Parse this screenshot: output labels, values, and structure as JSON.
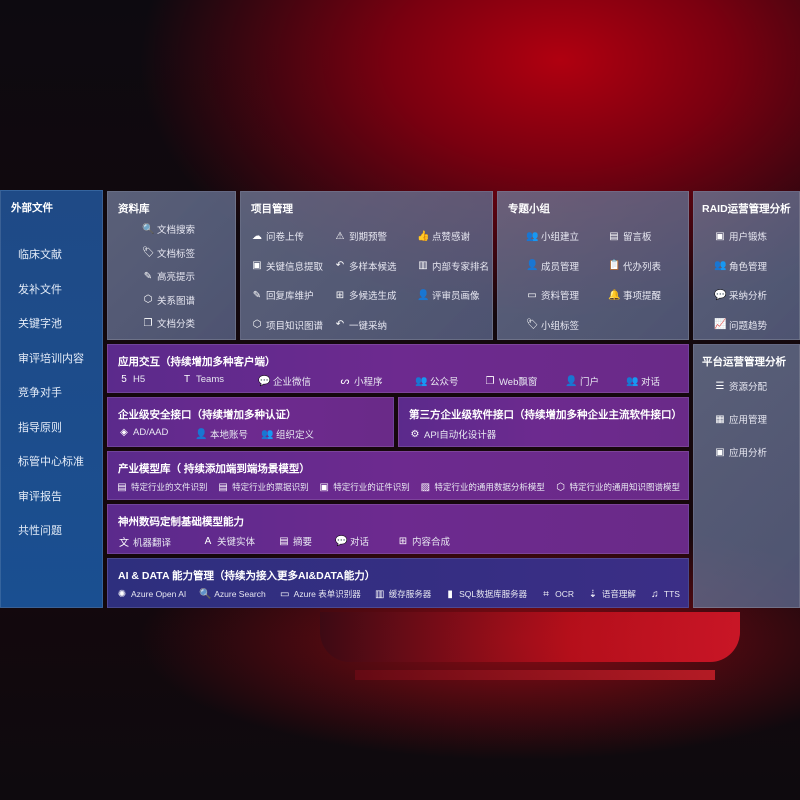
{
  "sidebar": {
    "title": "外部文件",
    "items": [
      "临床文献",
      "发补文件",
      "关键字池",
      "审评培训内容",
      "竞争对手",
      "指导原则",
      "标管中心标准",
      "审评报告",
      "共性问题"
    ]
  },
  "library": {
    "title": "资料库",
    "items": [
      {
        "icon": "doc-search-icon",
        "glyph": "🔍",
        "label": "文档搜索"
      },
      {
        "icon": "tag-icon",
        "glyph": "🏷",
        "label": "文档标签"
      },
      {
        "icon": "pen-icon",
        "glyph": "✎",
        "label": "高亮提示"
      },
      {
        "icon": "graph-icon",
        "glyph": "⬡",
        "label": "关系图谱"
      },
      {
        "icon": "doc-copy-icon",
        "glyph": "❐",
        "label": "文档分类"
      }
    ]
  },
  "project": {
    "title": "项目管理",
    "items": [
      {
        "icon": "cloud-upload-icon",
        "glyph": "☁",
        "label": "问卷上传"
      },
      {
        "icon": "alarm-icon",
        "glyph": "⚠",
        "label": "到期预警"
      },
      {
        "icon": "thumb-up-icon",
        "glyph": "👍",
        "label": "点赞感谢"
      },
      {
        "icon": "window-icon",
        "glyph": "▣",
        "label": "关键信息提取"
      },
      {
        "icon": "reply-icon",
        "glyph": "↶",
        "label": "多样本候选"
      },
      {
        "icon": "rank-icon",
        "glyph": "▥",
        "label": "内部专家排名"
      },
      {
        "icon": "edit-icon",
        "glyph": "✎",
        "label": "回复库维护"
      },
      {
        "icon": "puzzle-icon",
        "glyph": "⊞",
        "label": "多候选生成"
      },
      {
        "icon": "user-icon",
        "glyph": "👤",
        "label": "评审员画像"
      },
      {
        "icon": "graph-icon",
        "glyph": "⬡",
        "label": "项目知识图谱"
      },
      {
        "icon": "reply-icon",
        "glyph": "↶",
        "label": "一键采纳"
      }
    ]
  },
  "group": {
    "title": "专题小组",
    "items": [
      {
        "icon": "users-icon",
        "glyph": "👥",
        "label": "小组建立"
      },
      {
        "icon": "bbs-icon",
        "glyph": "▤",
        "label": "留言板"
      },
      {
        "icon": "user-add-icon",
        "glyph": "👤",
        "label": "成员管理"
      },
      {
        "icon": "clipboard-icon",
        "glyph": "📋",
        "label": "代办列表"
      },
      {
        "icon": "folder-icon",
        "glyph": "▭",
        "label": "资料管理"
      },
      {
        "icon": "bell-icon",
        "glyph": "🔔",
        "label": "事项提醒"
      },
      {
        "icon": "tag-icon",
        "glyph": "🏷",
        "label": "小组标签"
      }
    ]
  },
  "raid": {
    "title": "RAID运营管理分析",
    "items": [
      {
        "icon": "id-card-icon",
        "glyph": "▣",
        "label": "用户锻炼"
      },
      {
        "icon": "users-icon",
        "glyph": "👥",
        "label": "角色管理"
      },
      {
        "icon": "qa-icon",
        "glyph": "💬",
        "label": "采纳分析"
      },
      {
        "icon": "trend-icon",
        "glyph": "📈",
        "label": "问题趋势"
      }
    ]
  },
  "platform": {
    "title": "平台运营管理分析",
    "items": [
      {
        "icon": "checklist-icon",
        "glyph": "☰",
        "label": "资源分配"
      },
      {
        "icon": "apps-icon",
        "glyph": "▦",
        "label": "应用管理"
      },
      {
        "icon": "analysis-icon",
        "glyph": "▣",
        "label": "应用分析"
      }
    ]
  },
  "app_interaction": {
    "title": "应用交互（持续增加多种客户端）",
    "items": [
      {
        "icon": "html5-icon",
        "glyph": "5",
        "label": "H5"
      },
      {
        "icon": "teams-icon",
        "glyph": "T",
        "label": "Teams"
      },
      {
        "icon": "wecom-icon",
        "glyph": "💬",
        "label": "企业微信"
      },
      {
        "icon": "miniprogram-icon",
        "glyph": "ᔕ",
        "label": "小程序"
      },
      {
        "icon": "official-account-icon",
        "glyph": "👥",
        "label": "公众号"
      },
      {
        "icon": "web-window-icon",
        "glyph": "❐",
        "label": "Web飘窗"
      },
      {
        "icon": "portal-icon",
        "glyph": "👤",
        "label": "门户"
      },
      {
        "icon": "chat-icon",
        "glyph": "👥",
        "label": "对话"
      }
    ]
  },
  "security": {
    "title": "企业级安全接口（持续增加多种认证）",
    "items": [
      {
        "icon": "ad-icon",
        "glyph": "◈",
        "label": "AD/AAD"
      },
      {
        "icon": "local-account-icon",
        "glyph": "👤",
        "label": "本地账号"
      },
      {
        "icon": "org-icon",
        "glyph": "👥",
        "label": "组织定义"
      }
    ]
  },
  "third_party": {
    "title": "第三方企业级软件接口（持续增加多种企业主流软件接口）",
    "items": [
      {
        "icon": "gear-icon",
        "glyph": "⚙",
        "label": "API自动化设计器"
      }
    ]
  },
  "industry": {
    "title": "产业模型库（ 持续添加端到端场景模型）",
    "items": [
      {
        "icon": "file-icon",
        "glyph": "▤",
        "label": "特定行业的文件识别"
      },
      {
        "icon": "receipt-icon",
        "glyph": "▤",
        "label": "特定行业的票据识别"
      },
      {
        "icon": "id-card-icon",
        "glyph": "▣",
        "label": "特定行业的证件识别"
      },
      {
        "icon": "chart-icon",
        "glyph": "▨",
        "label": "特定行业的通用数据分析模型"
      },
      {
        "icon": "graph-icon",
        "glyph": "⬡",
        "label": "特定行业的通用知识图谱模型"
      }
    ]
  },
  "base_model": {
    "title": "神州数码定制基础模型能力",
    "items": [
      {
        "icon": "translate-icon",
        "glyph": "文",
        "label": "机器翻译"
      },
      {
        "icon": "entity-icon",
        "glyph": "A",
        "label": "关键实体"
      },
      {
        "icon": "summary-icon",
        "glyph": "▤",
        "label": "摘要"
      },
      {
        "icon": "chat-bubble-icon",
        "glyph": "💬",
        "label": "对话"
      },
      {
        "icon": "compose-icon",
        "glyph": "⊞",
        "label": "内容合成"
      }
    ]
  },
  "ai_data": {
    "title": "AI & DATA 能力管理（持续为接入更多AI&DATA能力）",
    "items": [
      {
        "icon": "openai-icon",
        "glyph": "✺",
        "label": "Azure Open AI"
      },
      {
        "icon": "search-doc-icon",
        "glyph": "🔍",
        "label": "Azure Search"
      },
      {
        "icon": "form-icon",
        "glyph": "▭",
        "label": "Azure 表单识别器"
      },
      {
        "icon": "cache-icon",
        "glyph": "▥",
        "label": "缓存服务器"
      },
      {
        "icon": "sql-icon",
        "glyph": "▮",
        "label": "SQL数据库服务器"
      },
      {
        "icon": "ocr-icon",
        "glyph": "⌗",
        "label": "OCR"
      },
      {
        "icon": "speech-icon",
        "glyph": "⇣",
        "label": "语音理解"
      },
      {
        "icon": "tts-icon",
        "glyph": "♫",
        "label": "TTS"
      }
    ]
  },
  "colors": {
    "purple": "#6d2a8f",
    "grey_panel": "#6e7896",
    "sidebar_blue": "#1f4a86",
    "red_glow": "#b00010"
  }
}
